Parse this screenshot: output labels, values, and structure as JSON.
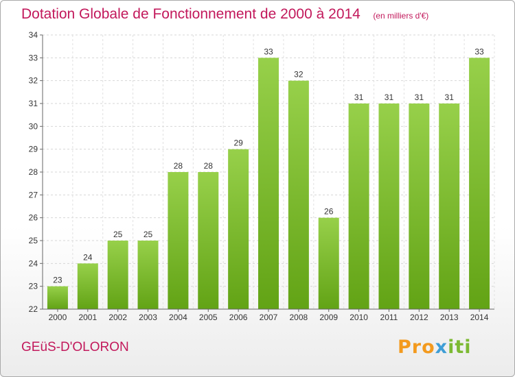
{
  "chart_data": {
    "type": "bar",
    "title": "Dotation Globale de Fonctionnement de 2000 à 2014",
    "subtitle": "(en milliers d'€)",
    "categories": [
      "2000",
      "2001",
      "2002",
      "2003",
      "2004",
      "2005",
      "2006",
      "2007",
      "2008",
      "2009",
      "2010",
      "2011",
      "2012",
      "2013",
      "2014"
    ],
    "values": [
      23,
      24,
      25,
      25,
      28,
      28,
      29,
      33,
      32,
      26,
      31,
      31,
      31,
      31,
      33
    ],
    "ylim": [
      22,
      34
    ],
    "yticks": [
      22,
      23,
      24,
      25,
      26,
      27,
      28,
      29,
      30,
      31,
      32,
      33,
      34
    ],
    "grid": true,
    "bar_color": "#7cb932",
    "xlabel": "",
    "ylabel": ""
  },
  "commune": "GEüS-D'OLORON",
  "logo": {
    "part1": "Pro",
    "part2": "x",
    "part3": "iti"
  }
}
